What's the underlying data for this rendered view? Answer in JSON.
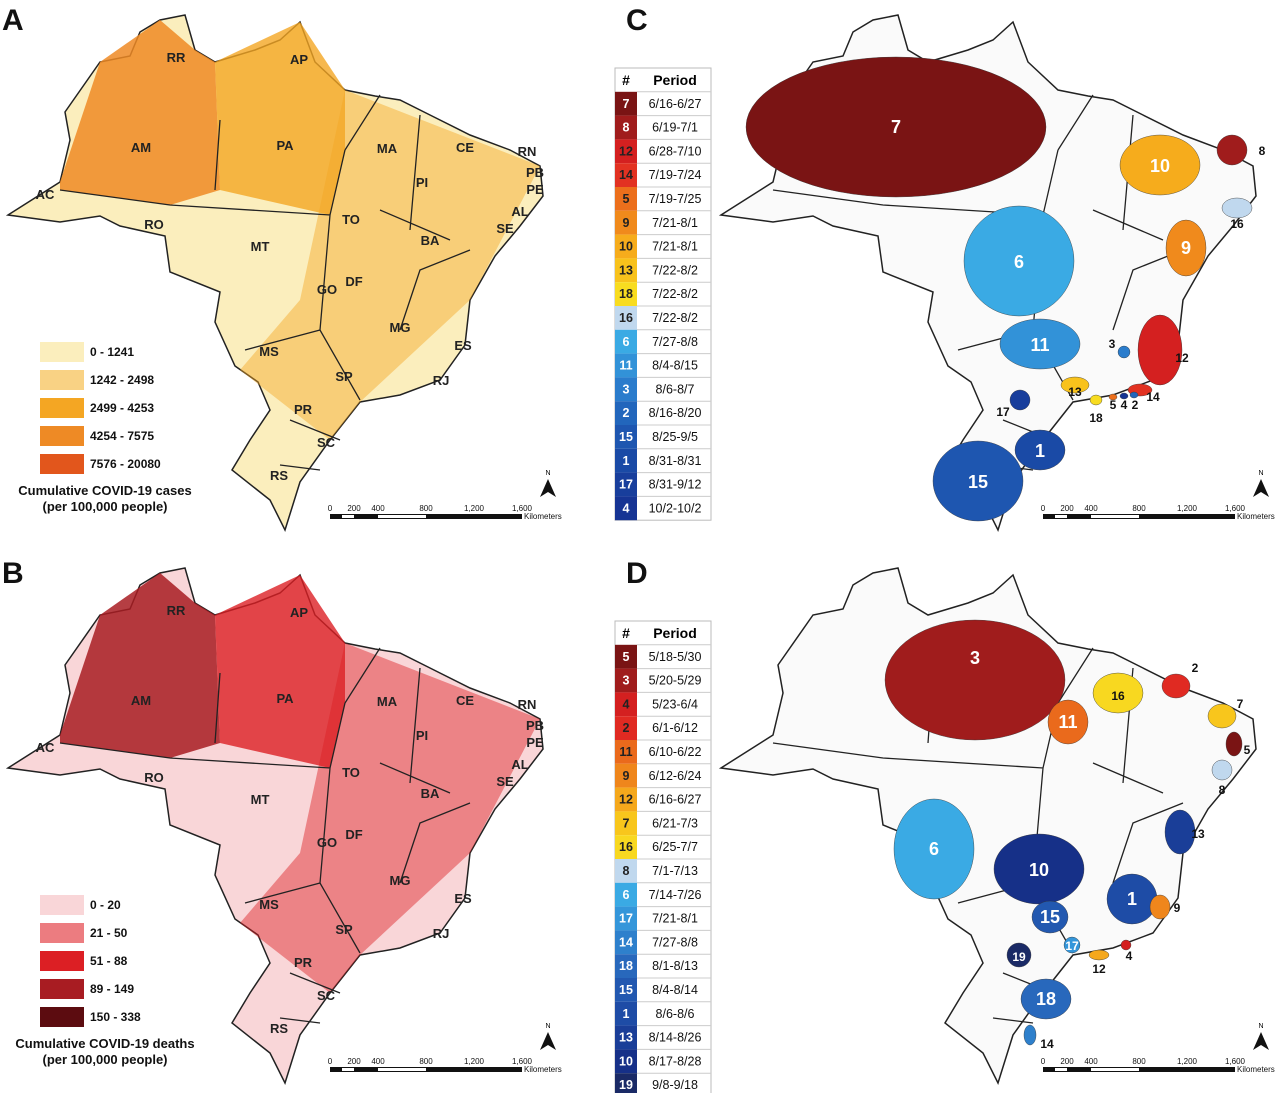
{
  "panels": {
    "A": {
      "letter": "A",
      "legend": [
        {
          "label": "0 - 1241",
          "color": "#fbeebd"
        },
        {
          "label": "1242 - 2498",
          "color": "#f9d284"
        },
        {
          "label": "2499 - 4253",
          "color": "#f4a623"
        },
        {
          "label": "4254 - 7575",
          "color": "#ee8a25"
        },
        {
          "label": "7576 - 20080",
          "color": "#e2561c"
        }
      ],
      "caption": [
        "Cumulative COVID-19 cases",
        "(per 100,000 people)"
      ]
    },
    "B": {
      "letter": "B",
      "legend": [
        {
          "label": "0 - 20",
          "color": "#f9d6d8"
        },
        {
          "label": "21 - 50",
          "color": "#ec7c80"
        },
        {
          "label": "51 - 88",
          "color": "#dc1f24"
        },
        {
          "label": "89 - 149",
          "color": "#a81c22"
        },
        {
          "label": "150 - 338",
          "color": "#5c0c10"
        }
      ],
      "caption": [
        "Cumulative COVID-19 deaths",
        "(per 100,000 people)"
      ]
    },
    "C": {
      "letter": "C",
      "header": [
        "#",
        "Period"
      ],
      "rows": [
        {
          "n": "7",
          "period": "6/16-6/27",
          "color": "#7a1414"
        },
        {
          "n": "8",
          "period": "6/19-7/1",
          "color": "#a01c1c"
        },
        {
          "n": "12",
          "period": "6/28-7/10",
          "color": "#d42020"
        },
        {
          "n": "14",
          "period": "7/19-7/24",
          "color": "#e23222"
        },
        {
          "n": "5",
          "period": "7/19-7/25",
          "color": "#ec6f1c"
        },
        {
          "n": "9",
          "period": "7/21-8/1",
          "color": "#f08a1c"
        },
        {
          "n": "10",
          "period": "7/21-8/1",
          "color": "#f6ac1c"
        },
        {
          "n": "13",
          "period": "7/22-8/2",
          "color": "#f8c21c"
        },
        {
          "n": "18",
          "period": "7/22-8/2",
          "color": "#f8dc20"
        },
        {
          "n": "16",
          "period": "7/22-8/2",
          "color": "#c0d8ee"
        },
        {
          "n": "6",
          "period": "7/27-8/8",
          "color": "#3aaae4"
        },
        {
          "n": "11",
          "period": "8/4-8/15",
          "color": "#3292d8"
        },
        {
          "n": "3",
          "period": "8/6-8/7",
          "color": "#2a7ccc"
        },
        {
          "n": "2",
          "period": "8/16-8/20",
          "color": "#2266bc"
        },
        {
          "n": "15",
          "period": "8/25-9/5",
          "color": "#1e56b0"
        },
        {
          "n": "1",
          "period": "8/31-8/31",
          "color": "#1a4aa6"
        },
        {
          "n": "17",
          "period": "8/31-9/12",
          "color": "#183e9c"
        },
        {
          "n": "4",
          "period": "10/2-10/2",
          "color": "#163494"
        }
      ]
    },
    "D": {
      "letter": "D",
      "header": [
        "#",
        "Period"
      ],
      "rows": [
        {
          "n": "5",
          "period": "5/18-5/30",
          "color": "#7a1414"
        },
        {
          "n": "3",
          "period": "5/20-5/29",
          "color": "#a01c1c"
        },
        {
          "n": "4",
          "period": "5/23-6/4",
          "color": "#d42020"
        },
        {
          "n": "2",
          "period": "6/1-6/12",
          "color": "#e02a22"
        },
        {
          "n": "11",
          "period": "6/10-6/22",
          "color": "#ea6a1c"
        },
        {
          "n": "9",
          "period": "6/12-6/24",
          "color": "#ef861c"
        },
        {
          "n": "12",
          "period": "6/16-6/27",
          "color": "#f5a81c"
        },
        {
          "n": "7",
          "period": "6/21-7/3",
          "color": "#f8c61c"
        },
        {
          "n": "16",
          "period": "6/25-7/7",
          "color": "#f8d820"
        },
        {
          "n": "8",
          "period": "7/1-7/13",
          "color": "#c0d8ee"
        },
        {
          "n": "6",
          "period": "7/14-7/26",
          "color": "#3aaae4"
        },
        {
          "n": "17",
          "period": "7/21-8/1",
          "color": "#3496da"
        },
        {
          "n": "14",
          "period": "7/27-8/8",
          "color": "#2e80cc"
        },
        {
          "n": "18",
          "period": "8/1-8/13",
          "color": "#2868bc"
        },
        {
          "n": "15",
          "period": "8/4-8/14",
          "color": "#2258b0"
        },
        {
          "n": "1",
          "period": "8/6-8/6",
          "color": "#1e4ca6"
        },
        {
          "n": "13",
          "period": "8/14-8/26",
          "color": "#1a3e98"
        },
        {
          "n": "10",
          "period": "8/17-8/28",
          "color": "#163088"
        },
        {
          "n": "19",
          "period": "9/8-9/18",
          "color": "#1a2a66"
        }
      ]
    }
  },
  "states": [
    "RR",
    "AP",
    "AM",
    "PA",
    "MA",
    "CE",
    "RN",
    "PB",
    "PE",
    "AL",
    "SE",
    "PI",
    "AC",
    "RO",
    "TO",
    "MT",
    "BA",
    "GO",
    "DF",
    "MG",
    "ES",
    "MS",
    "SP",
    "RJ",
    "PR",
    "SC",
    "RS"
  ],
  "scale": {
    "ticks": [
      "0",
      "200",
      "400",
      "800",
      "1,200",
      "1,600"
    ],
    "unit": "Kilometers",
    "north": "N"
  }
}
